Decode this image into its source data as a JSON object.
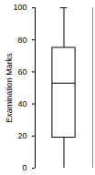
{
  "chart_data": {
    "type": "box",
    "y_label": "Examination Marks",
    "min": 0,
    "q1": 19,
    "median": 53,
    "q3": 75,
    "max": 100,
    "color": "#ffffff",
    "ylim": [
      0,
      100
    ],
    "yticks": [
      0,
      20,
      40,
      60,
      80,
      100
    ],
    "grid": false
  }
}
